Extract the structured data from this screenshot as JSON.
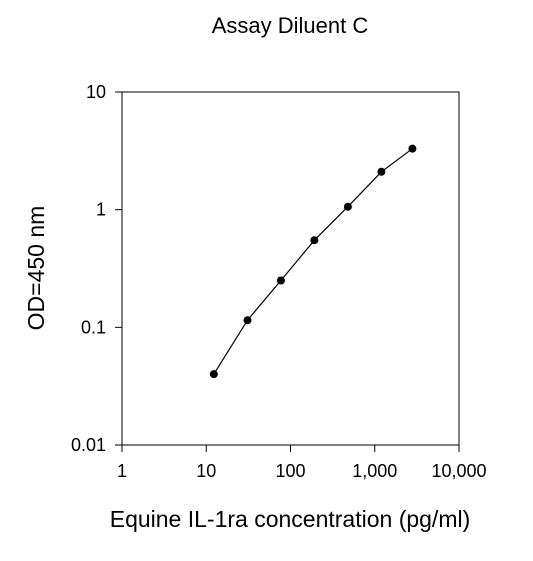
{
  "chart_data": {
    "type": "line",
    "title": "Assay Diluent C",
    "xlabel": "Equine IL-1ra concentration (pg/ml)",
    "ylabel": "OD=450 nm",
    "xscale": "log",
    "yscale": "log",
    "xlim": [
      1,
      10000
    ],
    "ylim": [
      0.01,
      10
    ],
    "x_ticks": [
      {
        "value": 1,
        "label": "1"
      },
      {
        "value": 10,
        "label": "10"
      },
      {
        "value": 100,
        "label": "100"
      },
      {
        "value": 1000,
        "label": "1,000"
      },
      {
        "value": 10000,
        "label": "10,000"
      }
    ],
    "y_ticks": [
      {
        "value": 0.01,
        "label": "0.01"
      },
      {
        "value": 0.1,
        "label": "0.1"
      },
      {
        "value": 1,
        "label": "1"
      },
      {
        "value": 10,
        "label": "10"
      }
    ],
    "grid": false,
    "legend": "none",
    "series": [
      {
        "points": [
          {
            "x": 12.3,
            "y": 0.04
          },
          {
            "x": 30.9,
            "y": 0.115
          },
          {
            "x": 77,
            "y": 0.25
          },
          {
            "x": 192,
            "y": 0.55
          },
          {
            "x": 480,
            "y": 1.06
          },
          {
            "x": 1200,
            "y": 2.1
          },
          {
            "x": 2800,
            "y": 3.3
          }
        ]
      }
    ],
    "colors": {
      "line": "#000000",
      "marker": "#000000",
      "axis": "#000000"
    }
  }
}
